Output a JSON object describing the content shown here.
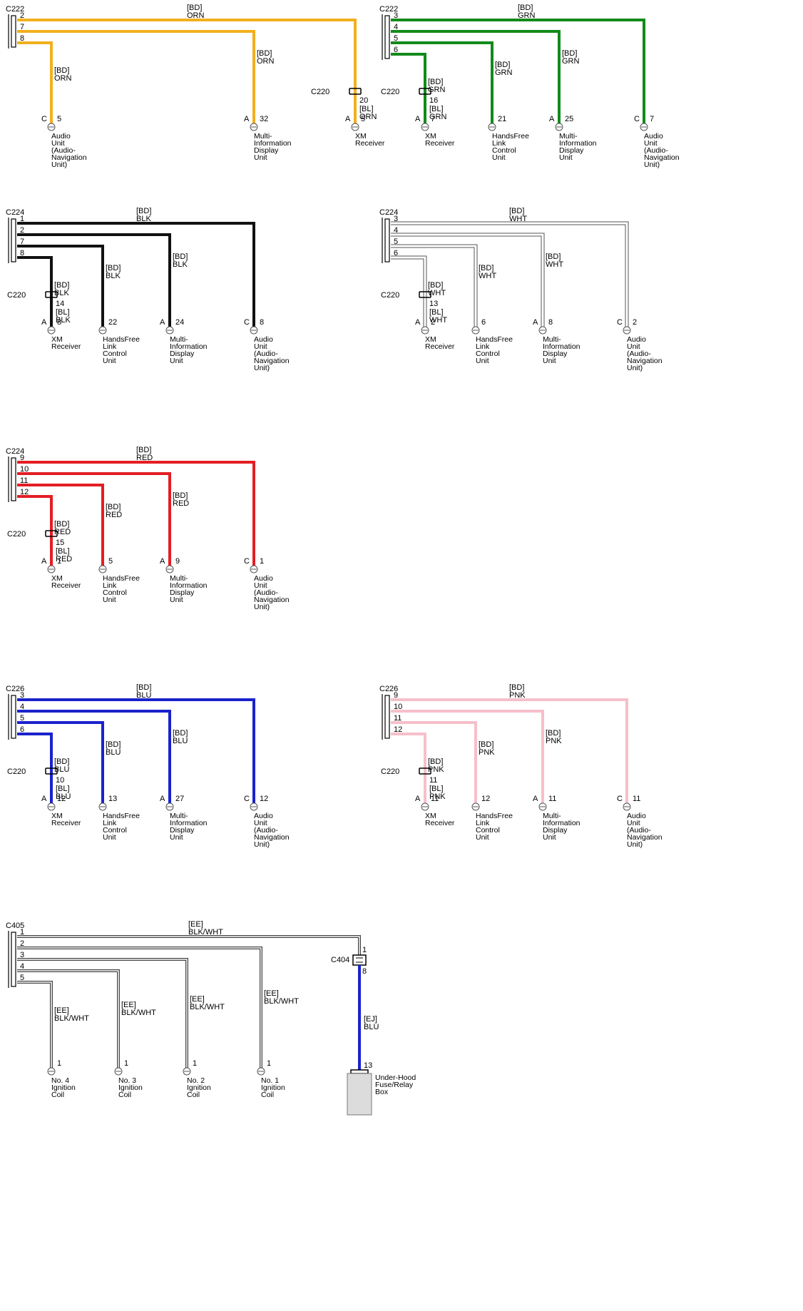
{
  "colors": {
    "ORN": "#f2b01e",
    "GRN": "#138a1a",
    "BLK": "#111111",
    "WHT": "#ffffff",
    "RED": "#e31e24",
    "BLU": "#1a22cc",
    "PNK": "#f6bfca",
    "BLK_WHT": "#444444",
    "outline": "#555555"
  },
  "diagrams": [
    {
      "id": "orn",
      "header": "C222",
      "wire_color": "ORN",
      "bus_label_1": "[BD]",
      "bus_label_2": "ORN",
      "pins": [
        "2",
        "7",
        "8"
      ],
      "branches": [
        {
          "l1": "[BD]",
          "l2": "ORN",
          "side": "C",
          "pin": "5",
          "dev": [
            "Audio",
            "Unit",
            "(Audio-",
            "Navigation",
            "Unit)"
          ]
        },
        {
          "l1": "[BD]",
          "l2": "ORN",
          "side": "A",
          "pin": "32",
          "dev": [
            "Multi-",
            "Information",
            "Display",
            "Unit"
          ]
        },
        {
          "l1": "",
          "l2": "",
          "side": "A",
          "pin": "5",
          "dev": [
            "XM",
            "Receiver"
          ],
          "conn": {
            "name": "C220",
            "pin": "20",
            "bl1": "[BL]",
            "bl2": "ORN"
          }
        }
      ]
    },
    {
      "id": "grn",
      "header": "C222",
      "wire_color": "GRN",
      "bus_label_1": "[BD]",
      "bus_label_2": "GRN",
      "pins": [
        "3",
        "4",
        "5",
        "6"
      ],
      "branches": [
        {
          "l1": "[BD]",
          "l2": "GRN",
          "side": "A",
          "pin": "7",
          "dev": [
            "XM",
            "Receiver"
          ],
          "conn": {
            "name": "C220",
            "pin": "16",
            "bl1": "[BL]",
            "bl2": "GRN"
          }
        },
        {
          "l1": "[BD]",
          "l2": "GRN",
          "side": "",
          "pin": "21",
          "dev": [
            "HandsFree",
            "Link",
            "Control",
            "Unit"
          ]
        },
        {
          "l1": "[BD]",
          "l2": "GRN",
          "side": "A",
          "pin": "25",
          "dev": [
            "Multi-",
            "Information",
            "Display",
            "Unit"
          ]
        },
        {
          "l1": "",
          "l2": "",
          "side": "C",
          "pin": "7",
          "dev": [
            "Audio",
            "Unit",
            "(Audio-",
            "Navigation",
            "Unit)"
          ]
        }
      ]
    },
    {
      "id": "blk",
      "header": "C224",
      "wire_color": "BLK",
      "bus_label_1": "[BD]",
      "bus_label_2": "BLK",
      "pins": [
        "1",
        "2",
        "7",
        "8"
      ],
      "branches": [
        {
          "l1": "[BD]",
          "l2": "BLK",
          "side": "A",
          "pin": "8",
          "dev": [
            "XM",
            "Receiver"
          ],
          "conn": {
            "name": "C220",
            "pin": "14",
            "bl1": "[BL]",
            "bl2": "BLK"
          }
        },
        {
          "l1": "[BD]",
          "l2": "BLK",
          "side": "",
          "pin": "22",
          "dev": [
            "HandsFree",
            "Link",
            "Control",
            "Unit"
          ]
        },
        {
          "l1": "[BD]",
          "l2": "BLK",
          "side": "A",
          "pin": "24",
          "dev": [
            "Multi-",
            "Information",
            "Display",
            "Unit"
          ]
        },
        {
          "l1": "",
          "l2": "",
          "side": "C",
          "pin": "8",
          "dev": [
            "Audio",
            "Unit",
            "(Audio-",
            "Navigation",
            "Unit)"
          ]
        }
      ]
    },
    {
      "id": "wht",
      "header": "C224",
      "wire_color": "WHT",
      "bus_label_1": "[BD]",
      "bus_label_2": "WHT",
      "pins": [
        "3",
        "4",
        "5",
        "6"
      ],
      "branches": [
        {
          "l1": "[BD]",
          "l2": "WHT",
          "side": "A",
          "pin": "2",
          "dev": [
            "XM",
            "Receiver"
          ],
          "conn": {
            "name": "C220",
            "pin": "13",
            "bl1": "[BL]",
            "bl2": "WHT"
          }
        },
        {
          "l1": "[BD]",
          "l2": "WHT",
          "side": "",
          "pin": "6",
          "dev": [
            "HandsFree",
            "Link",
            "Control",
            "Unit"
          ]
        },
        {
          "l1": "[BD]",
          "l2": "WHT",
          "side": "A",
          "pin": "8",
          "dev": [
            "Multi-",
            "Information",
            "Display",
            "Unit"
          ]
        },
        {
          "l1": "",
          "l2": "",
          "side": "C",
          "pin": "2",
          "dev": [
            "Audio",
            "Unit",
            "(Audio-",
            "Navigation",
            "Unit)"
          ]
        }
      ]
    },
    {
      "id": "red",
      "header": "C224",
      "wire_color": "RED",
      "bus_label_1": "[BD]",
      "bus_label_2": "RED",
      "pins": [
        "9",
        "10",
        "11",
        "12"
      ],
      "branches": [
        {
          "l1": "[BD]",
          "l2": "RED",
          "side": "A",
          "pin": "1",
          "dev": [
            "XM",
            "Receiver"
          ],
          "conn": {
            "name": "C220",
            "pin": "15",
            "bl1": "[BL]",
            "bl2": "RED"
          }
        },
        {
          "l1": "[BD]",
          "l2": "RED",
          "side": "",
          "pin": "5",
          "dev": [
            "HandsFree",
            "Link",
            "Control",
            "Unit"
          ]
        },
        {
          "l1": "[BD]",
          "l2": "RED",
          "side": "A",
          "pin": "9",
          "dev": [
            "Multi-",
            "Information",
            "Display",
            "Unit"
          ]
        },
        {
          "l1": "",
          "l2": "",
          "side": "C",
          "pin": "1",
          "dev": [
            "Audio",
            "Unit",
            "(Audio-",
            "Navigation",
            "Unit)"
          ]
        }
      ]
    },
    {
      "id": "blu",
      "header": "C226",
      "wire_color": "BLU",
      "bus_label_1": "[BD]",
      "bus_label_2": "BLU",
      "pins": [
        "3",
        "4",
        "5",
        "6"
      ],
      "branches": [
        {
          "l1": "[BD]",
          "l2": "BLU",
          "side": "A",
          "pin": "12",
          "dev": [
            "XM",
            "Receiver"
          ],
          "conn": {
            "name": "C220",
            "pin": "10",
            "bl1": "[BL]",
            "bl2": "BLU"
          }
        },
        {
          "l1": "[BD]",
          "l2": "BLU",
          "side": "",
          "pin": "13",
          "dev": [
            "HandsFree",
            "Link",
            "Control",
            "Unit"
          ]
        },
        {
          "l1": "[BD]",
          "l2": "BLU",
          "side": "A",
          "pin": "27",
          "dev": [
            "Multi-",
            "Information",
            "Display",
            "Unit"
          ]
        },
        {
          "l1": "",
          "l2": "",
          "side": "C",
          "pin": "12",
          "dev": [
            "Audio",
            "Unit",
            "(Audio-",
            "Navigation",
            "Unit)"
          ]
        }
      ]
    },
    {
      "id": "pnk",
      "header": "C226",
      "wire_color": "PNK",
      "bus_label_1": "[BD]",
      "bus_label_2": "PNK",
      "pins": [
        "9",
        "10",
        "11",
        "12"
      ],
      "branches": [
        {
          "l1": "[BD]",
          "l2": "PNK",
          "side": "A",
          "pin": "11",
          "dev": [
            "XM",
            "Receiver"
          ],
          "conn": {
            "name": "C220",
            "pin": "11",
            "bl1": "[BL]",
            "bl2": "PNK"
          }
        },
        {
          "l1": "[BD]",
          "l2": "PNK",
          "side": "",
          "pin": "12",
          "dev": [
            "HandsFree",
            "Link",
            "Control",
            "Unit"
          ]
        },
        {
          "l1": "[BD]",
          "l2": "PNK",
          "side": "A",
          "pin": "11",
          "dev": [
            "Multi-",
            "Information",
            "Display",
            "Unit"
          ]
        },
        {
          "l1": "",
          "l2": "",
          "side": "C",
          "pin": "11",
          "dev": [
            "Audio",
            "Unit",
            "(Audio-",
            "Navigation",
            "Unit)"
          ]
        }
      ]
    },
    {
      "id": "blkwht",
      "header": "C405",
      "wire_color": "BLK_WHT",
      "bus_label_1": "[EE]",
      "bus_label_2": "BLK/WHT",
      "pins": [
        "1",
        "2",
        "3",
        "4",
        "5"
      ],
      "branches": [
        {
          "l1": "[EE]",
          "l2": "BLK/WHT",
          "side": "",
          "pin": "1",
          "dev": [
            "No. 4",
            "Ignition",
            "Coil"
          ]
        },
        {
          "l1": "[EE]",
          "l2": "BLK/WHT",
          "side": "",
          "pin": "1",
          "dev": [
            "No. 3",
            "Ignition",
            "Coil"
          ]
        },
        {
          "l1": "[EE]",
          "l2": "BLK/WHT",
          "side": "",
          "pin": "1",
          "dev": [
            "No. 2",
            "Ignition",
            "Coil"
          ]
        },
        {
          "l1": "[EE]",
          "l2": "BLK/WHT",
          "side": "",
          "pin": "1",
          "dev": [
            "No. 1",
            "Ignition",
            "Coil"
          ]
        }
      ],
      "c404": {
        "name": "C404",
        "pin_top": "1",
        "pin_bottom": "8",
        "wire_l1": "[EJ]",
        "wire_l2": "BLU",
        "fuse_pin": "13",
        "fuse_box": [
          "Under-Hood",
          "Fuse/Relay",
          "Box"
        ]
      }
    }
  ]
}
